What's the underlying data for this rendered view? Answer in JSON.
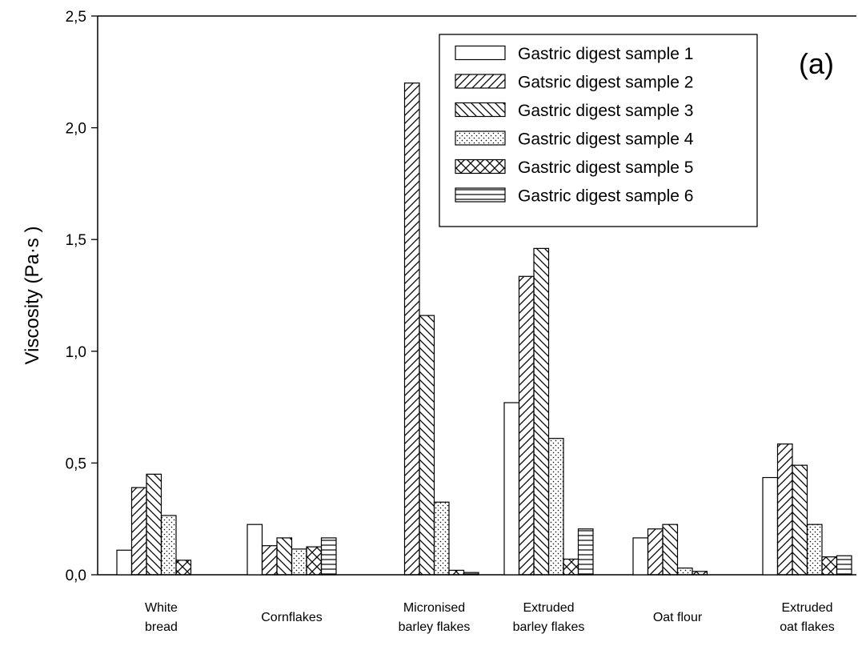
{
  "chart_data": {
    "type": "bar",
    "title": "",
    "xlabel": "",
    "ylabel": "Viscosity (Pa·s )",
    "panel_label": "(a)",
    "ylim": [
      0,
      2.5
    ],
    "yticks": [
      "0,0",
      "0,5",
      "1,0",
      "1,5",
      "2,0",
      "2,5"
    ],
    "ytick_values": [
      0,
      0.5,
      1.0,
      1.5,
      2.0,
      2.5
    ],
    "grid": false,
    "legend_position": "top-right",
    "categories": [
      [
        "White",
        "bread"
      ],
      [
        "Cornflakes"
      ],
      [
        "Micronised",
        "barley flakes"
      ],
      [
        "Extruded",
        "barley flakes"
      ],
      [
        "Oat flour"
      ],
      [
        "Extruded",
        "oat flakes"
      ]
    ],
    "series": [
      {
        "name": "Gastric digest sample 1",
        "pattern": "none",
        "values": [
          0.11,
          0.225,
          0.0,
          0.77,
          0.165,
          0.435
        ]
      },
      {
        "name": "Gatsric digest sample 2",
        "pattern": "forward-diagonal",
        "values": [
          0.39,
          0.13,
          2.2,
          1.335,
          0.205,
          0.585
        ]
      },
      {
        "name": "Gastric digest sample 3",
        "pattern": "back-diagonal",
        "values": [
          0.45,
          0.165,
          1.16,
          1.46,
          0.225,
          0.49
        ]
      },
      {
        "name": "Gastric digest sample 4",
        "pattern": "dots",
        "values": [
          0.265,
          0.115,
          0.325,
          0.61,
          0.03,
          0.225
        ]
      },
      {
        "name": "Gastric digest sample 5",
        "pattern": "crosshatch",
        "values": [
          0.065,
          0.125,
          0.02,
          0.07,
          0.015,
          0.08
        ]
      },
      {
        "name": "Gastric digest sample 6",
        "pattern": "horizontal",
        "values": [
          0.0,
          0.165,
          0.01,
          0.205,
          0.0,
          0.085
        ]
      }
    ]
  }
}
